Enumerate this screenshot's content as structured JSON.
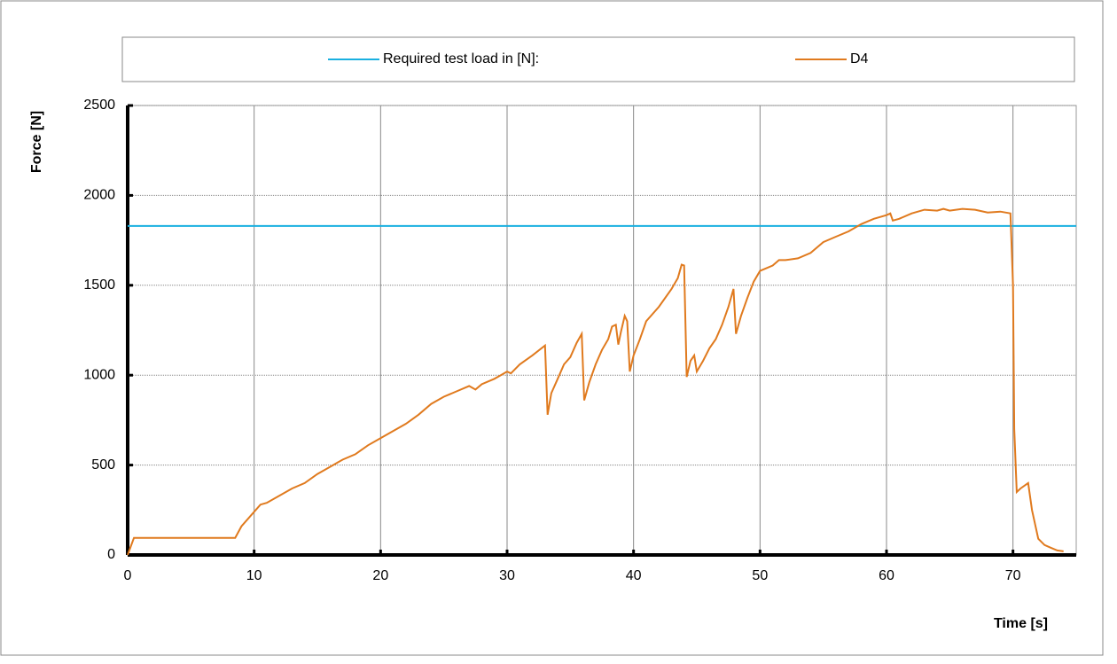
{
  "chart_data": {
    "type": "line",
    "xlabel": "Time [s]",
    "ylabel": "Force [N]",
    "xlim": [
      0,
      75
    ],
    "xticks": [
      0,
      10,
      20,
      30,
      40,
      50,
      60,
      70
    ],
    "ylim": [
      0,
      2500
    ],
    "yticks": [
      0,
      500,
      1000,
      1500,
      2000,
      2500
    ],
    "grid": true,
    "legend": "top",
    "series": [
      {
        "name": "Required test load in [N]:",
        "color": "#1ab0e0",
        "x": [
          0,
          75
        ],
        "values": [
          1830,
          1830
        ]
      },
      {
        "name": "D4",
        "color": "#e07a1e",
        "x": [
          0,
          0.5,
          8.5,
          9,
          10,
          10.5,
          11,
          12,
          13,
          14,
          15,
          16,
          17,
          18,
          19,
          20,
          21,
          22,
          23,
          24,
          25,
          26,
          27,
          27.5,
          28,
          29,
          29.5,
          30,
          30.3,
          31,
          32,
          33,
          33.2,
          33.5,
          34,
          34.5,
          35,
          35.5,
          35.9,
          36.1,
          36.5,
          37,
          37.5,
          38,
          38.3,
          38.6,
          38.8,
          39,
          39.3,
          39.5,
          39.7,
          40,
          40.5,
          41,
          42,
          43,
          43.5,
          43.8,
          44,
          44.2,
          44.5,
          44.8,
          45,
          45.5,
          46,
          46.5,
          47,
          47.5,
          47.9,
          48.1,
          48.5,
          49,
          49.5,
          50,
          51,
          51.5,
          52,
          53,
          54,
          55,
          56,
          57,
          58,
          59,
          60,
          60.3,
          60.5,
          61,
          62,
          63,
          64,
          64.5,
          65,
          66,
          67,
          68,
          69,
          69.8,
          70,
          70.1,
          70.3,
          70.6,
          71,
          71.2,
          71.5,
          72,
          72.5,
          73,
          73.5,
          74
        ],
        "values": [
          0,
          95,
          95,
          160,
          240,
          280,
          290,
          330,
          370,
          400,
          450,
          490,
          530,
          560,
          610,
          650,
          690,
          730,
          780,
          840,
          880,
          910,
          940,
          920,
          950,
          980,
          1000,
          1020,
          1010,
          1060,
          1110,
          1165,
          780,
          900,
          980,
          1060,
          1100,
          1180,
          1230,
          860,
          960,
          1060,
          1140,
          1200,
          1270,
          1280,
          1170,
          1240,
          1330,
          1300,
          1020,
          1110,
          1200,
          1300,
          1380,
          1480,
          1540,
          1615,
          1610,
          990,
          1080,
          1110,
          1020,
          1080,
          1150,
          1200,
          1280,
          1380,
          1480,
          1230,
          1330,
          1430,
          1520,
          1580,
          1610,
          1640,
          1640,
          1650,
          1680,
          1740,
          1770,
          1800,
          1840,
          1870,
          1890,
          1900,
          1860,
          1870,
          1900,
          1920,
          1915,
          1925,
          1915,
          1925,
          1920,
          1905,
          1910,
          1900,
          1500,
          700,
          350,
          370,
          390,
          400,
          250,
          90,
          55,
          40,
          25,
          20
        ]
      }
    ]
  }
}
